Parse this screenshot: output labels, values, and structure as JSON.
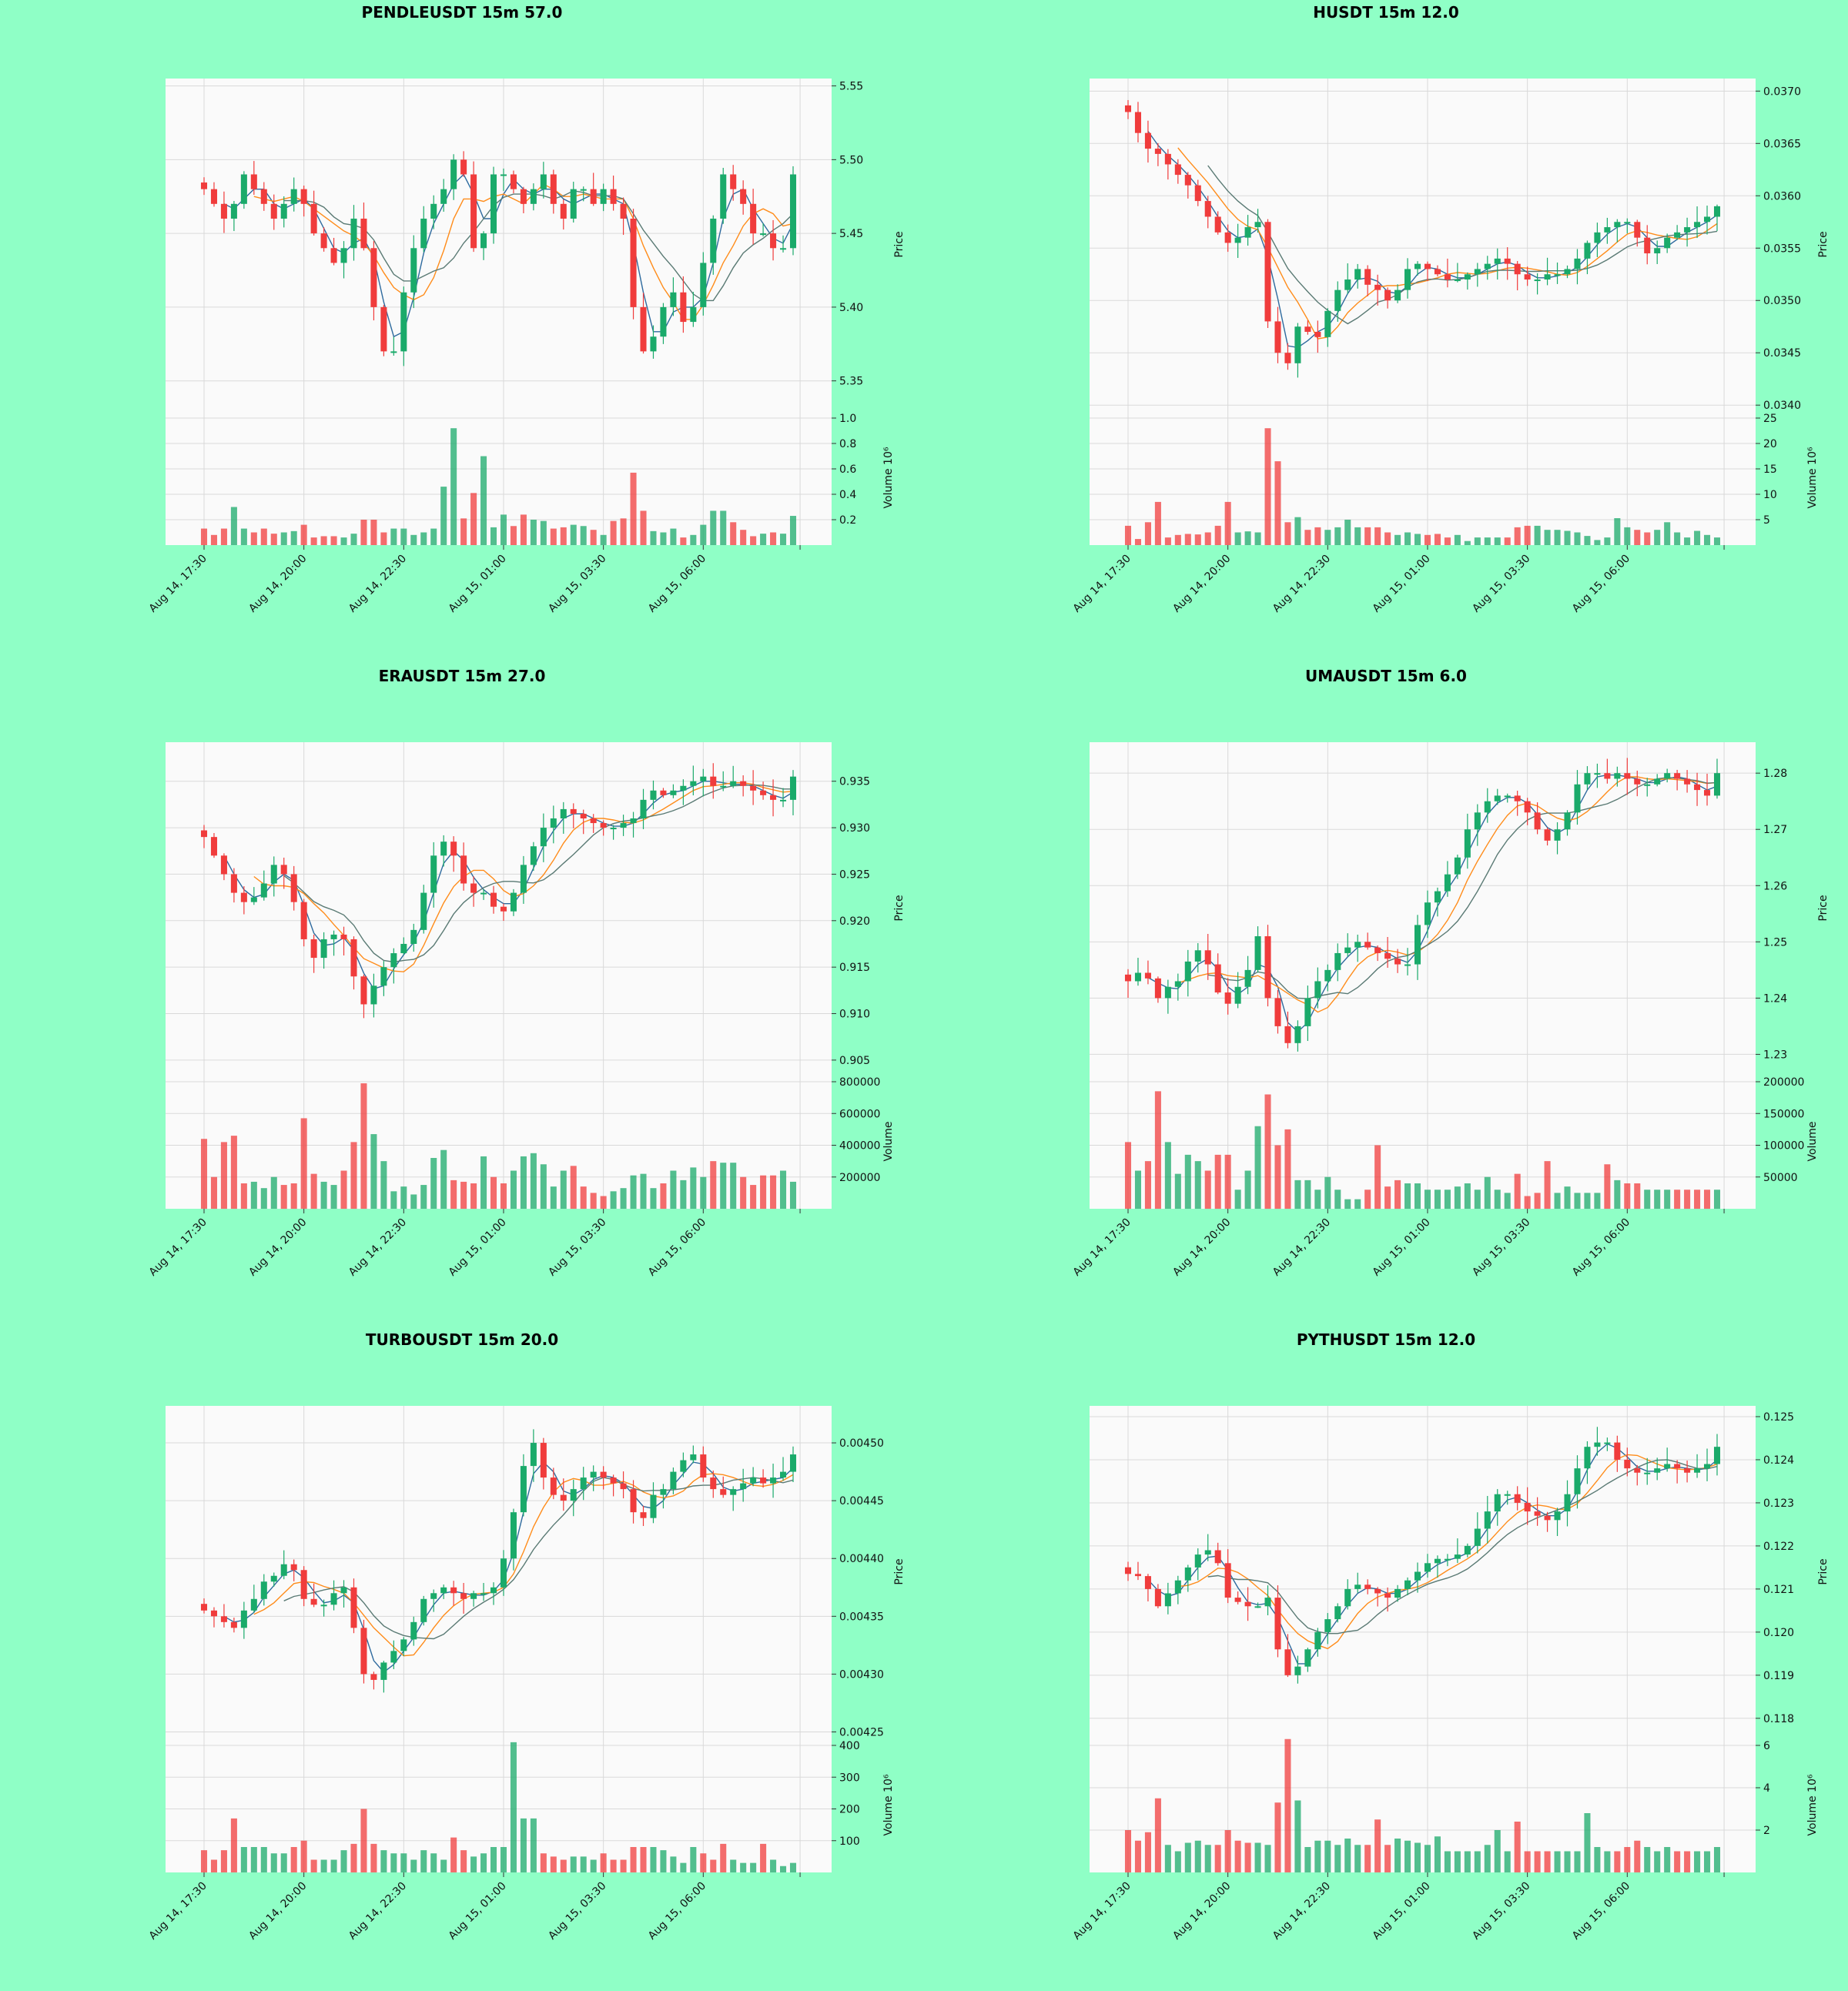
{
  "colors": {
    "page_background": "#8fffc6",
    "plot_background": "#fafafa",
    "up": "#1aaa6a",
    "down": "#f03c3c",
    "ma_fast": "#2e6a9e",
    "ma_mid": "#ff8c1a",
    "ma_slow": "#5a7a74",
    "grid": "#d9d9d9"
  },
  "x_axis": {
    "ticks": [
      {
        "i": 0,
        "label": "Aug 14, 17:30"
      },
      {
        "i": 10,
        "label": "Aug 14, 20:00"
      },
      {
        "i": 20,
        "label": "Aug 14, 22:30"
      },
      {
        "i": 30,
        "label": "Aug 15, 01:00"
      },
      {
        "i": 40,
        "label": "Aug 15, 03:30"
      },
      {
        "i": 50,
        "label": "Aug 15, 06:00"
      }
    ],
    "bar_count": 60
  },
  "chart_data": [
    {
      "type": "candlestick",
      "title": "PENDLEUSDT 15m 57.0",
      "ylabel": "Price",
      "volume_label": "Volume  10⁶",
      "price_ylim": [
        5.33,
        5.555
      ],
      "price_ticks": [
        5.35,
        5.4,
        5.45,
        5.5,
        5.55
      ],
      "volume_ylim": [
        0,
        1.0
      ],
      "volume_ticks": [
        "0.2",
        "0.4",
        "0.6",
        "0.8",
        "1.0"
      ],
      "volume_tick_values": [
        0.2,
        0.4,
        0.6,
        0.8,
        1.0
      ],
      "trend": [
        5.48,
        5.47,
        5.46,
        5.47,
        5.49,
        5.48,
        5.47,
        5.46,
        5.47,
        5.48,
        5.47,
        5.45,
        5.44,
        5.43,
        5.44,
        5.46,
        5.44,
        5.4,
        5.37,
        5.37,
        5.41,
        5.44,
        5.46,
        5.47,
        5.48,
        5.5,
        5.49,
        5.44,
        5.45,
        5.49,
        5.49,
        5.48,
        5.47,
        5.48,
        5.49,
        5.47,
        5.46,
        5.48,
        5.48,
        5.47,
        5.48,
        5.47,
        5.46,
        5.4,
        5.37,
        5.38,
        5.4,
        5.41,
        5.39,
        5.4,
        5.43,
        5.46,
        5.49,
        5.48,
        5.47,
        5.45,
        5.45,
        5.44,
        5.44,
        5.49
      ],
      "volumes": [
        0.13,
        0.08,
        0.13,
        0.3,
        0.13,
        0.1,
        0.13,
        0.09,
        0.1,
        0.11,
        0.16,
        0.06,
        0.07,
        0.07,
        0.06,
        0.09,
        0.2,
        0.2,
        0.1,
        0.13,
        0.13,
        0.08,
        0.1,
        0.13,
        0.46,
        0.92,
        0.21,
        0.41,
        0.7,
        0.14,
        0.24,
        0.15,
        0.24,
        0.2,
        0.19,
        0.13,
        0.14,
        0.16,
        0.15,
        0.12,
        0.08,
        0.19,
        0.21,
        0.57,
        0.27,
        0.11,
        0.1,
        0.13,
        0.06,
        0.08,
        0.16,
        0.27,
        0.27,
        0.18,
        0.12,
        0.07,
        0.09,
        0.1,
        0.09,
        0.23
      ],
      "seed": 11
    },
    {
      "type": "candlestick",
      "title": "HUSDT 15m 12.0",
      "ylabel": "Price",
      "volume_label": "Volume  10⁶",
      "price_ylim": [
        0.03395,
        0.03712
      ],
      "price_ticks": [
        0.034,
        0.0345,
        0.035,
        0.0355,
        0.036,
        0.0365,
        0.037
      ],
      "volume_ylim": [
        0,
        25
      ],
      "volume_ticks": [
        "5",
        "10",
        "15",
        "20",
        "25"
      ],
      "volume_tick_values": [
        5,
        10,
        15,
        20,
        25
      ],
      "trend": [
        0.0368,
        0.0366,
        0.03645,
        0.0364,
        0.0363,
        0.0362,
        0.0361,
        0.03595,
        0.0358,
        0.03565,
        0.03555,
        0.0356,
        0.0357,
        0.03575,
        0.0348,
        0.0345,
        0.0344,
        0.03475,
        0.0347,
        0.03465,
        0.0349,
        0.0351,
        0.0352,
        0.0353,
        0.03515,
        0.0351,
        0.035,
        0.0351,
        0.0353,
        0.03535,
        0.0353,
        0.03525,
        0.0352,
        0.0352,
        0.03525,
        0.0353,
        0.03535,
        0.0354,
        0.03535,
        0.03525,
        0.0352,
        0.0352,
        0.03525,
        0.03525,
        0.0353,
        0.0354,
        0.03555,
        0.03565,
        0.0357,
        0.03575,
        0.03575,
        0.0356,
        0.03545,
        0.0355,
        0.0356,
        0.03565,
        0.0357,
        0.03575,
        0.0358,
        0.0359
      ],
      "volumes": [
        3.8,
        1.2,
        4.5,
        8.5,
        1.5,
        2.0,
        2.2,
        2.1,
        2.5,
        3.8,
        8.5,
        2.5,
        2.7,
        2.5,
        23.0,
        16.5,
        4.5,
        5.5,
        3.0,
        3.5,
        3.0,
        3.5,
        5.0,
        3.5,
        3.5,
        3.5,
        2.5,
        2.0,
        2.5,
        2.2,
        2.0,
        2.2,
        1.5,
        2.0,
        0.8,
        1.5,
        1.5,
        1.5,
        1.5,
        3.5,
        3.8,
        3.8,
        3.0,
        3.0,
        2.8,
        2.5,
        1.8,
        1.0,
        1.5,
        5.3,
        3.5,
        3.0,
        2.5,
        3.0,
        4.5,
        2.5,
        1.5,
        2.8,
        2.0,
        1.5
      ],
      "seed": 23
    },
    {
      "type": "candlestick",
      "title": "ERAUSDT 15m 27.0",
      "ylabel": "Price",
      "volume_label": "Volume",
      "price_ylim": [
        0.9035,
        0.9392
      ],
      "price_ticks": [
        0.905,
        0.91,
        0.915,
        0.92,
        0.925,
        0.93,
        0.935
      ],
      "volume_ylim": [
        0,
        800000
      ],
      "volume_ticks": [
        "200000",
        "400000",
        "600000",
        "800000"
      ],
      "volume_tick_values": [
        200000,
        400000,
        600000,
        800000
      ],
      "trend": [
        0.929,
        0.927,
        0.925,
        0.923,
        0.922,
        0.9225,
        0.924,
        0.926,
        0.925,
        0.922,
        0.918,
        0.916,
        0.918,
        0.9185,
        0.918,
        0.914,
        0.911,
        0.913,
        0.915,
        0.9165,
        0.9175,
        0.919,
        0.923,
        0.927,
        0.9285,
        0.927,
        0.924,
        0.923,
        0.923,
        0.9215,
        0.921,
        0.923,
        0.926,
        0.928,
        0.93,
        0.931,
        0.932,
        0.9315,
        0.931,
        0.9305,
        0.93,
        0.93,
        0.9305,
        0.931,
        0.933,
        0.934,
        0.9335,
        0.934,
        0.9345,
        0.935,
        0.9355,
        0.9345,
        0.9345,
        0.935,
        0.9345,
        0.934,
        0.9335,
        0.933,
        0.933,
        0.9355
      ],
      "volumes": [
        440000,
        200000,
        420000,
        460000,
        160000,
        170000,
        130000,
        200000,
        150000,
        160000,
        570000,
        220000,
        170000,
        150000,
        240000,
        420000,
        790000,
        470000,
        300000,
        110000,
        140000,
        90000,
        150000,
        320000,
        370000,
        180000,
        170000,
        160000,
        330000,
        200000,
        160000,
        240000,
        330000,
        350000,
        280000,
        140000,
        240000,
        270000,
        140000,
        100000,
        80000,
        110000,
        130000,
        210000,
        220000,
        130000,
        160000,
        240000,
        180000,
        260000,
        200000,
        300000,
        290000,
        290000,
        200000,
        150000,
        210000,
        210000,
        240000,
        170000
      ],
      "seed": 37
    },
    {
      "type": "candlestick",
      "title": "UMAUSDT 15m 6.0",
      "ylabel": "Price",
      "volume_label": "Volume",
      "price_ylim": [
        1.2265,
        1.2855
      ],
      "price_ticks": [
        1.23,
        1.24,
        1.25,
        1.26,
        1.27,
        1.28
      ],
      "volume_ylim": [
        0,
        200000
      ],
      "volume_ticks": [
        "50000",
        "100000",
        "150000",
        "200000"
      ],
      "volume_tick_values": [
        50000,
        100000,
        150000,
        200000
      ],
      "trend": [
        1.243,
        1.2445,
        1.2435,
        1.24,
        1.242,
        1.243,
        1.2465,
        1.2485,
        1.246,
        1.241,
        1.239,
        1.242,
        1.245,
        1.251,
        1.24,
        1.235,
        1.232,
        1.235,
        1.24,
        1.243,
        1.245,
        1.248,
        1.249,
        1.25,
        1.249,
        1.248,
        1.247,
        1.246,
        1.246,
        1.253,
        1.257,
        1.259,
        1.262,
        1.265,
        1.27,
        1.273,
        1.275,
        1.276,
        1.276,
        1.275,
        1.273,
        1.27,
        1.268,
        1.27,
        1.273,
        1.278,
        1.28,
        1.28,
        1.279,
        1.28,
        1.279,
        1.278,
        1.278,
        1.279,
        1.28,
        1.279,
        1.278,
        1.277,
        1.276,
        1.28
      ],
      "volumes": [
        105000,
        60000,
        75000,
        185000,
        105000,
        55000,
        85000,
        75000,
        60000,
        85000,
        85000,
        30000,
        60000,
        130000,
        180000,
        100000,
        125000,
        45000,
        45000,
        30000,
        50000,
        30000,
        15000,
        15000,
        30000,
        100000,
        35000,
        45000,
        40000,
        40000,
        30000,
        30000,
        30000,
        35000,
        40000,
        30000,
        50000,
        30000,
        25000,
        55000,
        20000,
        25000,
        75000,
        25000,
        35000,
        25000,
        25000,
        25000,
        70000,
        45000,
        40000,
        40000,
        30000,
        30000,
        30000,
        30000,
        30000,
        30000,
        30000,
        30000
      ],
      "seed": 41
    },
    {
      "type": "candlestick",
      "title": "TURBOUSDT 15m 20.0",
      "ylabel": "Price",
      "volume_label": "Volume  10⁶",
      "price_ylim": [
        0.004245,
        0.004532
      ],
      "price_ticks": [
        0.00425,
        0.0043,
        0.00435,
        0.0044,
        0.00445,
        0.0045
      ],
      "volume_ylim": [
        0,
        400
      ],
      "volume_ticks": [
        "100",
        "200",
        "300",
        "400"
      ],
      "volume_tick_values": [
        100,
        200,
        300,
        400
      ],
      "trend": [
        0.004355,
        0.00435,
        0.004345,
        0.00434,
        0.004355,
        0.004365,
        0.00438,
        0.004385,
        0.004395,
        0.00439,
        0.004365,
        0.00436,
        0.00436,
        0.00437,
        0.004375,
        0.00434,
        0.0043,
        0.004295,
        0.00431,
        0.00432,
        0.00433,
        0.004345,
        0.004365,
        0.00437,
        0.004375,
        0.00437,
        0.004365,
        0.00437,
        0.00437,
        0.004375,
        0.0044,
        0.00444,
        0.00448,
        0.0045,
        0.00447,
        0.004455,
        0.00445,
        0.00446,
        0.00447,
        0.004475,
        0.00447,
        0.004465,
        0.00446,
        0.00444,
        0.004435,
        0.004455,
        0.00446,
        0.004475,
        0.004485,
        0.00449,
        0.00447,
        0.00446,
        0.004455,
        0.00446,
        0.004465,
        0.00447,
        0.004465,
        0.00447,
        0.004475,
        0.00449
      ],
      "volumes": [
        70,
        40,
        70,
        170,
        80,
        80,
        80,
        60,
        60,
        80,
        100,
        40,
        40,
        40,
        70,
        90,
        200,
        90,
        70,
        60,
        60,
        40,
        70,
        60,
        40,
        110,
        70,
        50,
        60,
        80,
        80,
        410,
        170,
        170,
        60,
        50,
        40,
        50,
        50,
        40,
        60,
        40,
        40,
        80,
        80,
        80,
        70,
        50,
        30,
        80,
        60,
        40,
        90,
        40,
        30,
        30,
        90,
        40,
        20,
        30
      ],
      "seed": 53
    },
    {
      "type": "candlestick",
      "title": "PYTHUSDT 15m 12.0",
      "ylabel": "Price",
      "volume_label": "Volume  10⁶",
      "price_ylim": [
        0.11755,
        0.12525
      ],
      "price_ticks": [
        0.118,
        0.119,
        0.12,
        0.121,
        0.122,
        0.123,
        0.124,
        0.125
      ],
      "volume_ylim": [
        0,
        6
      ],
      "volume_ticks": [
        "2",
        "4",
        "6"
      ],
      "volume_tick_values": [
        2,
        4,
        6
      ],
      "trend": [
        0.12135,
        0.1213,
        0.121,
        0.1206,
        0.1209,
        0.1212,
        0.1215,
        0.1218,
        0.1219,
        0.1216,
        0.1208,
        0.1207,
        0.1206,
        0.1206,
        0.1208,
        0.1196,
        0.119,
        0.1192,
        0.1196,
        0.12,
        0.1203,
        0.1206,
        0.121,
        0.1211,
        0.121,
        0.1209,
        0.1208,
        0.121,
        0.1212,
        0.1214,
        0.1216,
        0.1217,
        0.1217,
        0.1218,
        0.122,
        0.1224,
        0.1228,
        0.1232,
        0.1232,
        0.123,
        0.1228,
        0.1227,
        0.1226,
        0.1228,
        0.1232,
        0.1238,
        0.1243,
        0.1244,
        0.1244,
        0.124,
        0.1238,
        0.1237,
        0.1237,
        0.1238,
        0.1239,
        0.1238,
        0.1237,
        0.1238,
        0.1239,
        0.1243
      ],
      "volumes": [
        2.0,
        1.5,
        1.9,
        3.5,
        1.3,
        1.0,
        1.4,
        1.5,
        1.3,
        1.3,
        2.0,
        1.5,
        1.4,
        1.4,
        1.3,
        3.3,
        6.3,
        3.4,
        1.2,
        1.5,
        1.5,
        1.3,
        1.6,
        1.3,
        1.3,
        2.5,
        1.3,
        1.6,
        1.5,
        1.4,
        1.3,
        1.7,
        1.0,
        1.0,
        1.0,
        1.0,
        1.3,
        2.0,
        1.0,
        2.4,
        1.0,
        1.0,
        1.0,
        1.0,
        1.0,
        1.0,
        2.8,
        1.2,
        1.0,
        1.0,
        1.2,
        1.5,
        1.2,
        1.0,
        1.2,
        1.0,
        1.0,
        1.0,
        1.0,
        1.2
      ],
      "seed": 67
    }
  ]
}
